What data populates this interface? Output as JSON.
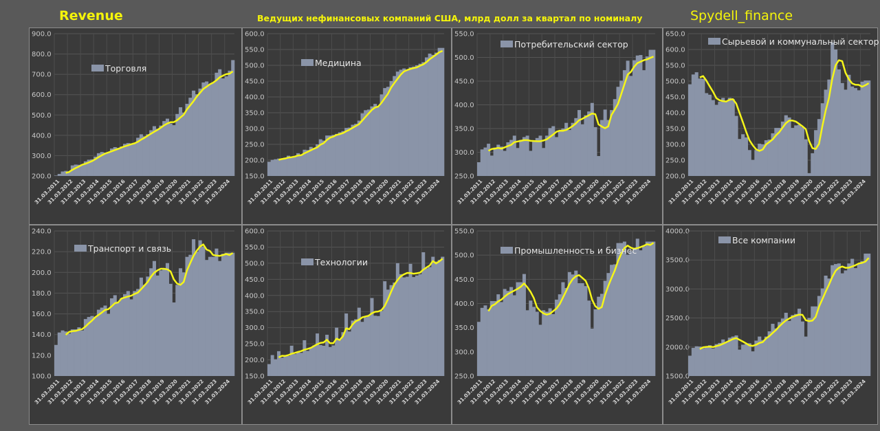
{
  "header": {
    "left_title": "Revenue",
    "subtitle": "Ведущих нефинансовых компаний США, млрд долл за квартал по номиналу",
    "brand": "Spydell_finance"
  },
  "colors": {
    "bar": "#8a94a8",
    "line": "#f5f51a",
    "panel_bg": "#3a3a3a",
    "page_bg": "#595959",
    "header_text": "#f5f50a"
  },
  "chart_data": [
    {
      "type": "bar",
      "title": "Торговля",
      "legend": "Торговля",
      "ylim": [
        200,
        900
      ],
      "yticks": [
        "200.0",
        "300.0",
        "400.0",
        "500.0",
        "600.0",
        "700.0",
        "800.0",
        "900.0"
      ],
      "xticks": [
        "31.03.2011",
        "31.03.2012",
        "31.03.2013",
        "31.03.2014",
        "31.03.2015",
        "31.03.2016",
        "31.03.2017",
        "31.03.2018",
        "31.03.2019",
        "31.03.2020",
        "31.03.2021",
        "31.03.2022",
        "31.03.2023",
        "31.03.2024"
      ],
      "values": [
        202,
        210,
        222,
        225,
        222,
        252,
        256,
        255,
        258,
        272,
        280,
        282,
        295,
        312,
        318,
        315,
        318,
        335,
        342,
        338,
        345,
        358,
        362,
        360,
        362,
        388,
        405,
        395,
        405,
        425,
        445,
        432,
        448,
        470,
        482,
        458,
        450,
        505,
        538,
        512,
        555,
        585,
        620,
        602,
        630,
        660,
        665,
        650,
        660,
        708,
        725,
        680,
        690,
        718,
        770
      ],
      "moving_average": "4-quarter"
    },
    {
      "type": "bar",
      "title": "Медицина",
      "legend": "Медицина",
      "ylim": [
        150,
        600
      ],
      "yticks": [
        "150.0",
        "200.0",
        "250.0",
        "300.0",
        "350.0",
        "400.0",
        "450.0",
        "500.0",
        "550.0",
        "600.0"
      ],
      "xticks": [
        "31.03.2011",
        "31.03.2012",
        "31.03.2013",
        "31.03.2014",
        "31.03.2015",
        "31.03.2016",
        "31.03.2017",
        "31.03.2018",
        "31.03.2019",
        "31.03.2020",
        "31.03.2021",
        "31.03.2022",
        "31.03.2023",
        "31.03.2024"
      ],
      "values": [
        195,
        201,
        203,
        205,
        205,
        208,
        214,
        210,
        213,
        222,
        218,
        233,
        232,
        242,
        238,
        250,
        266,
        262,
        278,
        278,
        280,
        283,
        288,
        292,
        302,
        303,
        312,
        315,
        325,
        348,
        358,
        360,
        370,
        378,
        370,
        408,
        428,
        432,
        450,
        466,
        480,
        486,
        490,
        484,
        494,
        496,
        500,
        505,
        510,
        525,
        537,
        533,
        540,
        555,
        555
      ],
      "moving_average": "4-quarter"
    },
    {
      "type": "bar",
      "title": "Потребительский сектор",
      "legend": "Потребительский сектор",
      "ylim": [
        250,
        550
      ],
      "yticks": [
        "250.0",
        "300.0",
        "350.0",
        "400.0",
        "450.0",
        "500.0",
        "550.0"
      ],
      "xticks": [
        "31.03.2011",
        "31.03.2012",
        "31.03.2013",
        "31.03.2014",
        "31.03.2015",
        "31.03.2016",
        "31.03.2017",
        "31.03.2018",
        "31.03.2019",
        "31.03.2020",
        "31.03.2021",
        "31.03.2022",
        "31.03.2023",
        "31.03.2024"
      ],
      "values": [
        279,
        306,
        310,
        318,
        293,
        310,
        316,
        312,
        303,
        321,
        326,
        335,
        309,
        326,
        332,
        335,
        303,
        325,
        330,
        335,
        309,
        335,
        351,
        355,
        332,
        344,
        350,
        362,
        347,
        362,
        372,
        389,
        359,
        378,
        386,
        404,
        353,
        292,
        368,
        390,
        368,
        389,
        412,
        438,
        451,
        473,
        493,
        461,
        494,
        504,
        505,
        473,
        502,
        516,
        516
      ],
      "moving_average": "4-quarter"
    },
    {
      "type": "bar",
      "title": "Сырьевой и коммунальный сектор",
      "legend": "Сырьевой и коммунальный сектор",
      "ylim": [
        200,
        650
      ],
      "yticks": [
        "200.0",
        "250.0",
        "300.0",
        "350.0",
        "400.0",
        "450.0",
        "500.0",
        "550.0",
        "600.0",
        "650.0"
      ],
      "xticks": [
        "31.03.2011",
        "31.03.2012",
        "31.03.2013",
        "31.03.2014",
        "31.03.2015",
        "31.03.2016",
        "31.03.2017",
        "31.03.2018",
        "31.03.2019",
        "31.03.2020",
        "31.03.2021",
        "31.03.2022",
        "31.03.2023",
        "31.03.2024"
      ],
      "values": [
        490,
        521,
        528,
        508,
        507,
        462,
        457,
        440,
        425,
        435,
        447,
        435,
        447,
        443,
        390,
        317,
        332,
        322,
        282,
        251,
        282,
        302,
        300,
        313,
        315,
        335,
        352,
        352,
        372,
        392,
        385,
        352,
        360,
        362,
        355,
        316,
        209,
        272,
        345,
        380,
        430,
        473,
        505,
        622,
        600,
        537,
        494,
        473,
        520,
        483,
        478,
        471,
        498,
        502,
        502
      ],
      "moving_average": "4-quarter"
    },
    {
      "type": "bar",
      "title": "Транспорт и связь",
      "legend": "Транспорт и связь",
      "ylim": [
        100,
        240
      ],
      "yticks": [
        "100.0",
        "120.0",
        "140.0",
        "160.0",
        "180.0",
        "200.0",
        "220.0",
        "240.0"
      ],
      "xticks": [
        "31.03.2011",
        "31.03.2012",
        "31.03.2013",
        "31.03.2014",
        "31.03.2015",
        "31.03.2016",
        "31.03.2017",
        "31.03.2018",
        "31.03.2019",
        "31.03.2020",
        "31.03.2021",
        "31.03.2022",
        "31.03.2023",
        "31.03.2024"
      ],
      "values": [
        130,
        142,
        144,
        143,
        141,
        145,
        145,
        147,
        144,
        155,
        157,
        158,
        157,
        164,
        166,
        168,
        160,
        175,
        178,
        171,
        175,
        179,
        182,
        174,
        182,
        184,
        195,
        188,
        196,
        204,
        211,
        197,
        202,
        204,
        209,
        189,
        171,
        188,
        204,
        200,
        215,
        217,
        232,
        220,
        231,
        225,
        212,
        215,
        215,
        223,
        211,
        218,
        219,
        219,
        219
      ],
      "moving_average": "4-quarter"
    },
    {
      "type": "bar",
      "title": "Технологии",
      "legend": "Технологии",
      "ylim": [
        150,
        600
      ],
      "yticks": [
        "150.0",
        "200.0",
        "250.0",
        "300.0",
        "350.0",
        "400.0",
        "450.0",
        "500.0",
        "550.0",
        "600.0"
      ],
      "xticks": [
        "31.03.2011",
        "31.03.2012",
        "31.03.2013",
        "31.03.2014",
        "31.03.2015",
        "31.03.2016",
        "31.03.2017",
        "31.03.2018",
        "31.03.2019",
        "31.03.2020",
        "31.03.2021",
        "31.03.2022",
        "31.03.2023",
        "31.03.2024"
      ],
      "values": [
        187,
        215,
        202,
        227,
        207,
        213,
        212,
        244,
        218,
        225,
        222,
        261,
        228,
        238,
        245,
        282,
        246,
        244,
        278,
        240,
        245,
        300,
        262,
        286,
        344,
        288,
        322,
        326,
        362,
        318,
        332,
        336,
        392,
        337,
        336,
        352,
        444,
        418,
        432,
        440,
        500,
        466,
        456,
        458,
        498,
        457,
        462,
        466,
        534,
        484,
        488,
        520,
        505,
        510,
        520
      ],
      "moving_average": "4-quarter"
    },
    {
      "type": "bar",
      "title": "Промышленность и бизнес",
      "legend": "Промышленность и бизнес",
      "ylim": [
        250,
        550
      ],
      "yticks": [
        "250.0",
        "300.0",
        "350.0",
        "400.0",
        "450.0",
        "500.0",
        "550.0"
      ],
      "xticks": [
        "31.03.2011",
        "31.03.2012",
        "31.03.2013",
        "31.03.2014",
        "31.03.2015",
        "31.03.2016",
        "31.03.2017",
        "31.03.2018",
        "31.03.2019",
        "31.03.2020",
        "31.03.2021",
        "31.03.2022",
        "31.03.2023",
        "31.03.2024"
      ],
      "values": [
        362,
        391,
        396,
        388,
        405,
        405,
        419,
        403,
        430,
        426,
        434,
        417,
        444,
        444,
        461,
        386,
        406,
        393,
        383,
        356,
        386,
        383,
        390,
        378,
        408,
        419,
        444,
        432,
        465,
        460,
        468,
        442,
        442,
        436,
        406,
        348,
        388,
        414,
        420,
        447,
        463,
        480,
        481,
        525,
        525,
        528,
        501,
        508,
        515,
        534,
        510,
        518,
        528,
        528,
        528
      ],
      "moving_average": "4-quarter"
    },
    {
      "type": "bar",
      "title": "Все компании",
      "legend": "Все компании",
      "ylim": [
        1500,
        4000
      ],
      "yticks": [
        "1500.0",
        "2000.0",
        "2500.0",
        "3000.0",
        "3500.0",
        "4000.0"
      ],
      "xticks": [
        "31.03.2011",
        "31.03.2012",
        "31.03.2013",
        "31.03.2014",
        "31.03.2015",
        "31.03.2016",
        "31.03.2017",
        "31.03.2018",
        "31.03.2019",
        "31.03.2020",
        "31.03.2021",
        "31.03.2022",
        "31.03.2023",
        "31.03.2024"
      ],
      "values": [
        1850,
        1985,
        2012,
        2008,
        1978,
        2010,
        2030,
        1975,
        2050,
        2070,
        2130,
        2075,
        2160,
        2180,
        2200,
        1955,
        2040,
        2050,
        2065,
        1925,
        2110,
        2180,
        2120,
        2180,
        2270,
        2400,
        2320,
        2430,
        2490,
        2590,
        2450,
        2550,
        2570,
        2660,
        2440,
        2180,
        2500,
        2700,
        2700,
        2880,
        3010,
        3230,
        3180,
        3410,
        3430,
        3440,
        3270,
        3320,
        3440,
        3520,
        3360,
        3440,
        3480,
        3610,
        3610
      ],
      "moving_average": "4-quarter"
    }
  ]
}
